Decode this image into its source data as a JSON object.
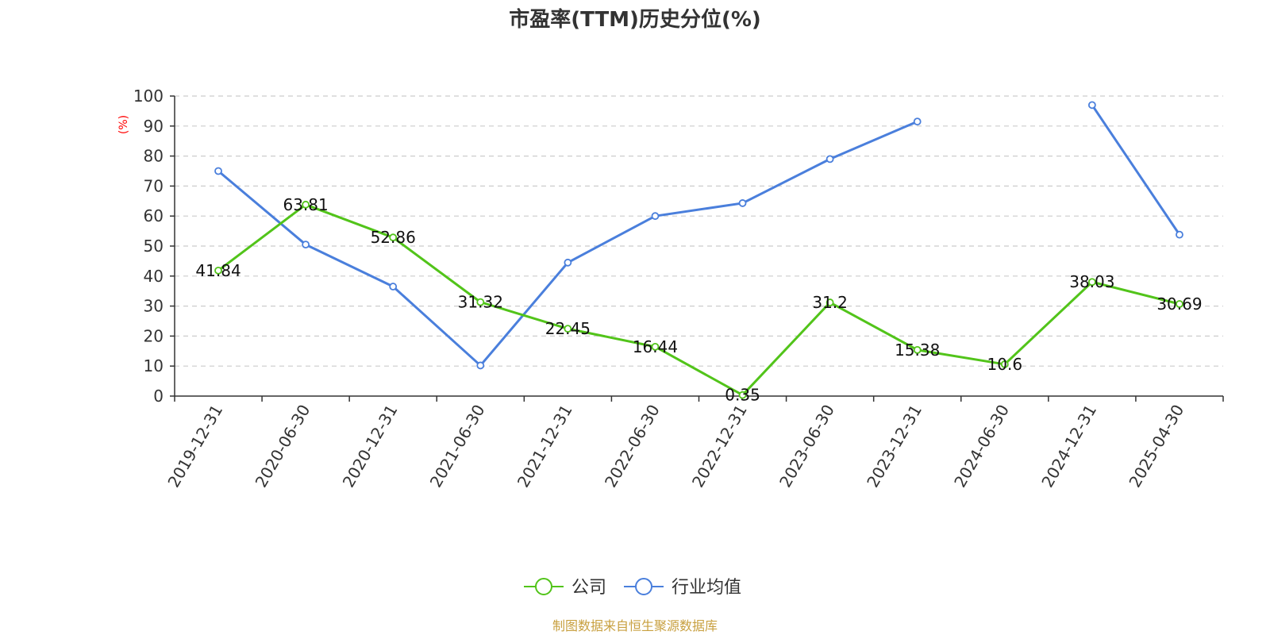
{
  "chart_data": {
    "type": "line",
    "title": "市盈率(TTM)历史分位(%)",
    "ylabel": "(%)",
    "xlabel": "",
    "ylim": [
      0,
      100
    ],
    "yticks": [
      0,
      10,
      20,
      30,
      40,
      50,
      60,
      70,
      80,
      90,
      100
    ],
    "grid": true,
    "legend_position": "bottom",
    "categories": [
      "2019-12-31",
      "2020-06-30",
      "2020-12-31",
      "2021-06-30",
      "2021-12-31",
      "2022-06-30",
      "2022-12-31",
      "2023-06-30",
      "2023-12-31",
      "2024-06-30",
      "2024-12-31",
      "2025-04-30"
    ],
    "series": [
      {
        "name": "公司",
        "color": "#52c41a",
        "show_labels": true,
        "values": [
          41.84,
          63.81,
          52.86,
          31.32,
          22.45,
          16.44,
          0.35,
          31.2,
          15.38,
          10.6,
          38.03,
          30.69
        ]
      },
      {
        "name": "行业均值",
        "color": "#4a7fdc",
        "show_labels": false,
        "values": [
          75,
          50.5,
          36.5,
          10.2,
          44.5,
          60,
          64.3,
          79,
          91.5,
          null,
          97,
          53.8
        ]
      }
    ],
    "source": "制图数据来自恒生聚源数据库"
  },
  "colors": {
    "axis": "#333333",
    "grid": "#cccccc",
    "unit_label": "#ff0000",
    "source": "#c8a040"
  }
}
